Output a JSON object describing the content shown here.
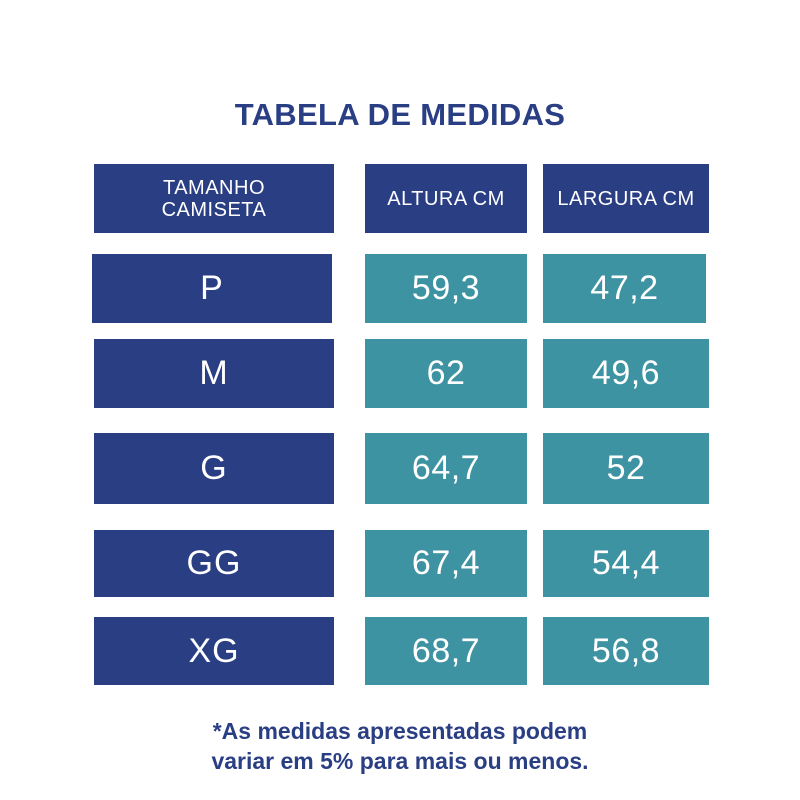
{
  "title": "TABELA DE MEDIDAS",
  "headers": {
    "size": [
      "TAMANHO",
      "CAMISETA"
    ],
    "height": "ALTURA CM",
    "width": "LARGURA CM"
  },
  "rows": [
    {
      "size": "P",
      "height": "59,3",
      "width": "47,2"
    },
    {
      "size": "M",
      "height": "62",
      "width": "49,6"
    },
    {
      "size": "G",
      "height": "64,7",
      "width": "52"
    },
    {
      "size": "GG",
      "height": "67,4",
      "width": "54,4"
    },
    {
      "size": "XG",
      "height": "68,7",
      "width": "56,8"
    }
  ],
  "note": {
    "line1": "*As medidas apresentadas podem",
    "line2": "variar em 5% para mais ou menos."
  },
  "colors": {
    "navy": "#2a3e84",
    "teal": "#3e93a3",
    "background": "#ffffff"
  }
}
